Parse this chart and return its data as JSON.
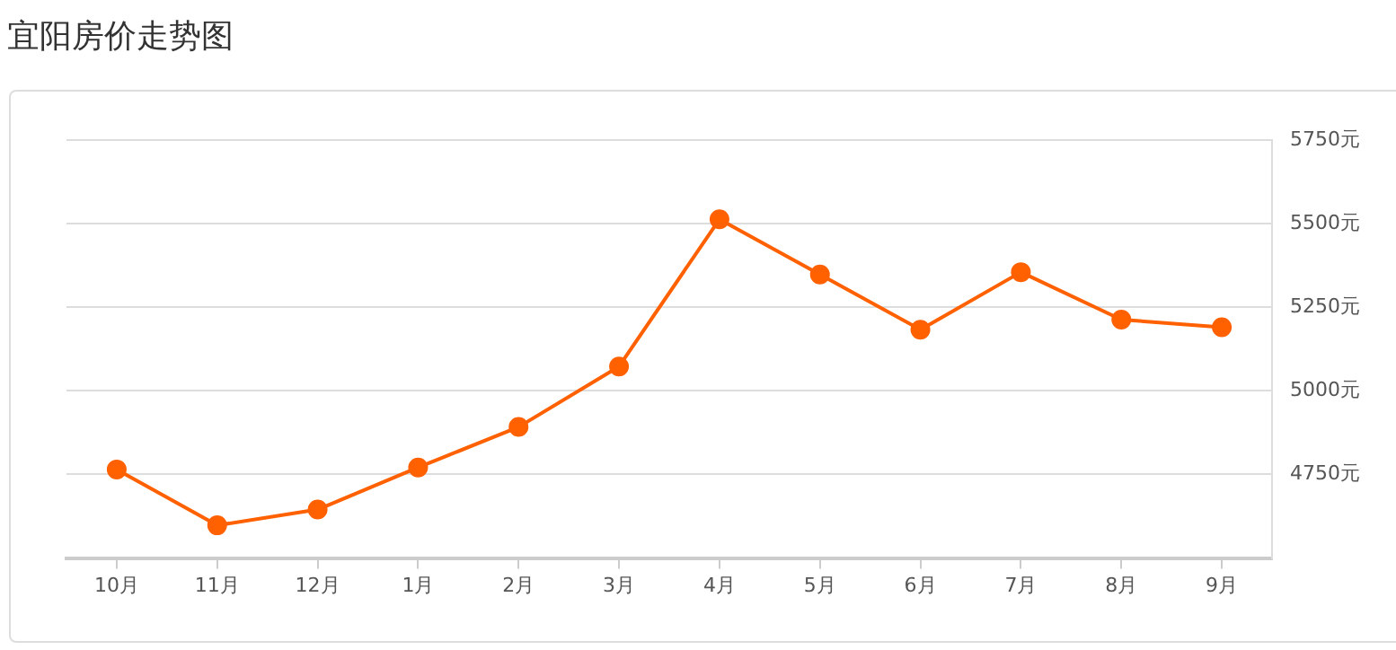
{
  "chart_data": {
    "type": "line",
    "title": "宜阳房价走势图",
    "categories": [
      "10月",
      "11月",
      "12月",
      "1月",
      "2月",
      "3月",
      "4月",
      "5月",
      "6月",
      "7月",
      "8月",
      "9月"
    ],
    "series": [
      {
        "color": "#ff6000",
        "values": [
          4765,
          4598,
          4645,
          4771,
          4892,
          5073,
          5513,
          5348,
          5183,
          5355,
          5213,
          5190
        ]
      }
    ],
    "ylim": [
      4500,
      5750
    ],
    "yticks": [
      {
        "value": 4750,
        "label": "4750元"
      },
      {
        "value": 5000,
        "label": "5000元"
      },
      {
        "value": 5250,
        "label": "5250元"
      },
      {
        "value": 5500,
        "label": "5500元"
      },
      {
        "value": 5750,
        "label": "5750元"
      }
    ],
    "grid": "y",
    "legend": false,
    "marker": "circle"
  }
}
